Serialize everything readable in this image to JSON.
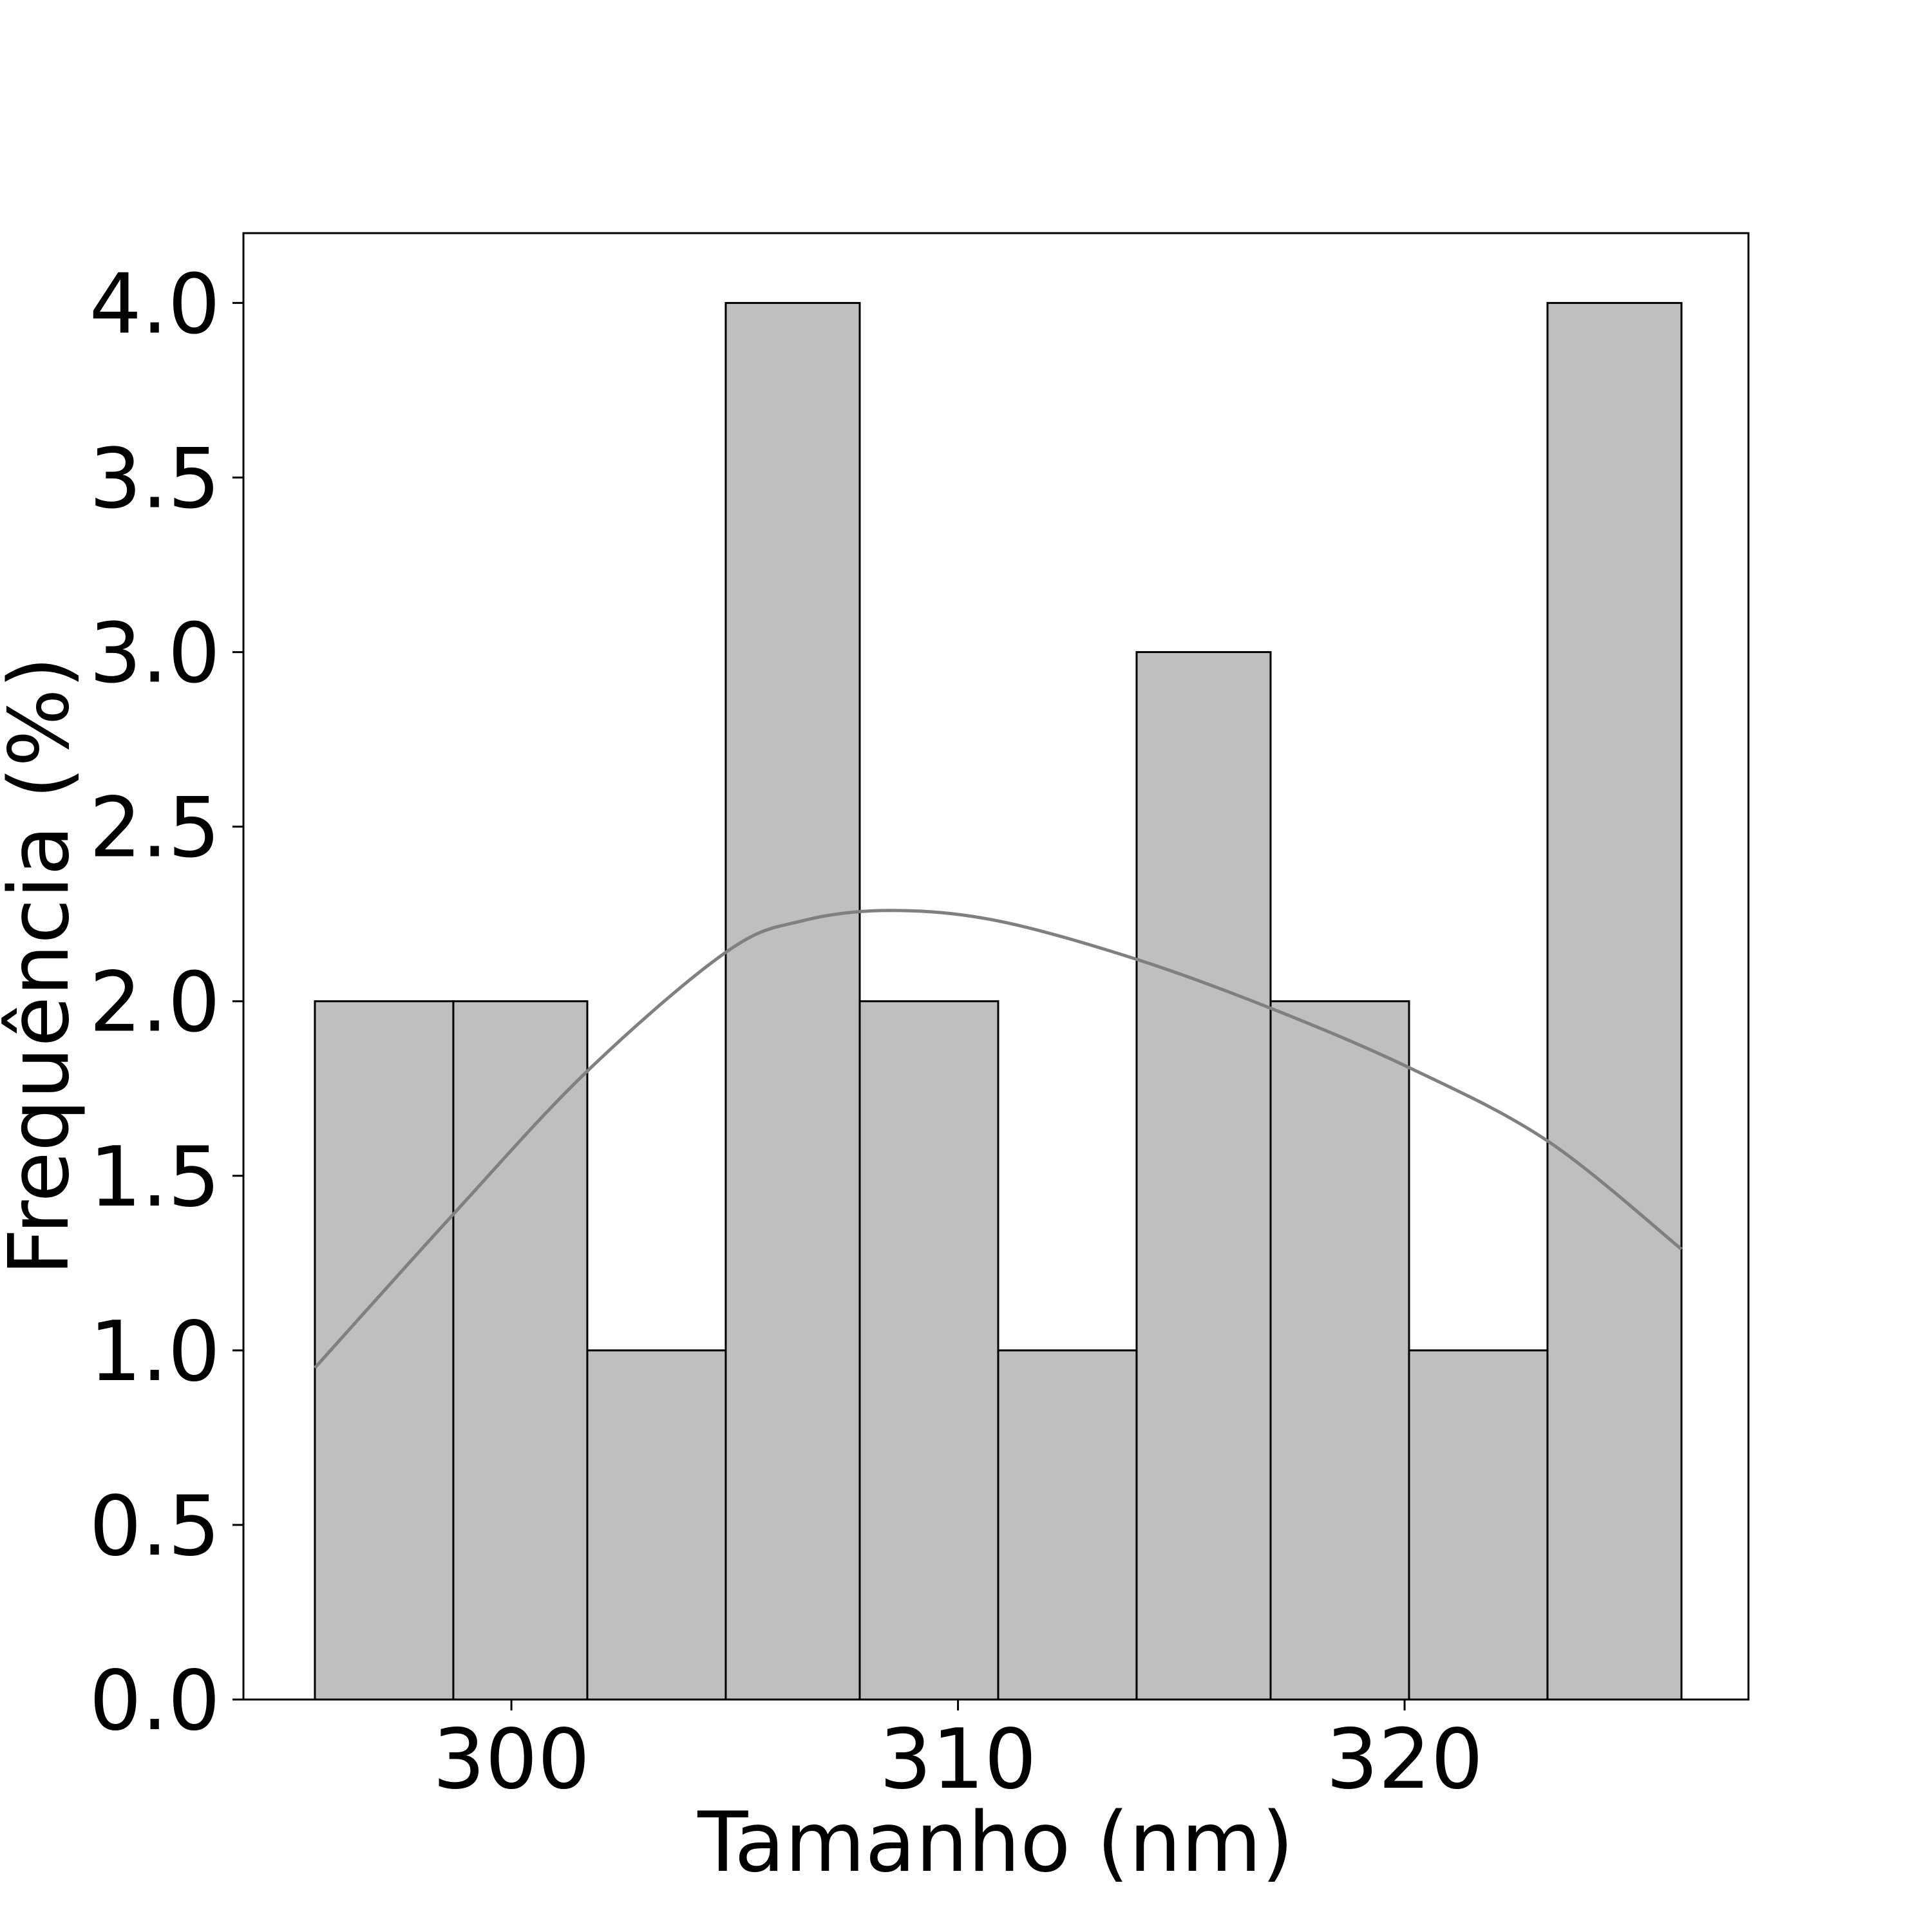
{
  "chart_data": {
    "type": "bar",
    "xlabel": "Tamanho (nm)",
    "ylabel": "Frequência (%)",
    "xlim": [
      294,
      327.7
    ],
    "ylim": [
      0,
      4.2
    ],
    "x_ticks": [
      300,
      310,
      320
    ],
    "x_tick_labels": [
      "300",
      "310",
      "320"
    ],
    "y_ticks": [
      0,
      0.5,
      1,
      1.5,
      2,
      2.5,
      3,
      3.5,
      4
    ],
    "y_tick_labels": [
      "0.0",
      "0.5",
      "1.0",
      "1.5",
      "2.0",
      "2.5",
      "3.0",
      "3.5",
      "4.0"
    ],
    "bins": [
      {
        "x0": 295.6,
        "x1": 298.7,
        "value": 2
      },
      {
        "x0": 298.7,
        "x1": 301.7,
        "value": 2
      },
      {
        "x0": 301.7,
        "x1": 304.8,
        "value": 1
      },
      {
        "x0": 304.8,
        "x1": 307.8,
        "value": 4
      },
      {
        "x0": 307.8,
        "x1": 310.9,
        "value": 2
      },
      {
        "x0": 310.9,
        "x1": 314.0,
        "value": 1
      },
      {
        "x0": 314.0,
        "x1": 317.0,
        "value": 3
      },
      {
        "x0": 317.0,
        "x1": 320.1,
        "value": 2
      },
      {
        "x0": 320.1,
        "x1": 323.2,
        "value": 1
      },
      {
        "x0": 323.2,
        "x1": 326.2,
        "value": 4
      }
    ],
    "kde": [
      [
        295.6,
        0.95
      ],
      [
        298.7,
        1.39
      ],
      [
        301.7,
        1.8
      ],
      [
        304.8,
        2.14
      ],
      [
        306.5,
        2.23
      ],
      [
        308.5,
        2.26
      ],
      [
        310.9,
        2.23
      ],
      [
        314.0,
        2.12
      ],
      [
        317.0,
        1.98
      ],
      [
        320.1,
        1.81
      ],
      [
        323.2,
        1.6
      ],
      [
        326.2,
        1.29
      ]
    ],
    "grid": false,
    "colors": {
      "bar_fill": "#bfbfbf",
      "bar_edge": "#000000",
      "kde_line": "#808080"
    }
  }
}
